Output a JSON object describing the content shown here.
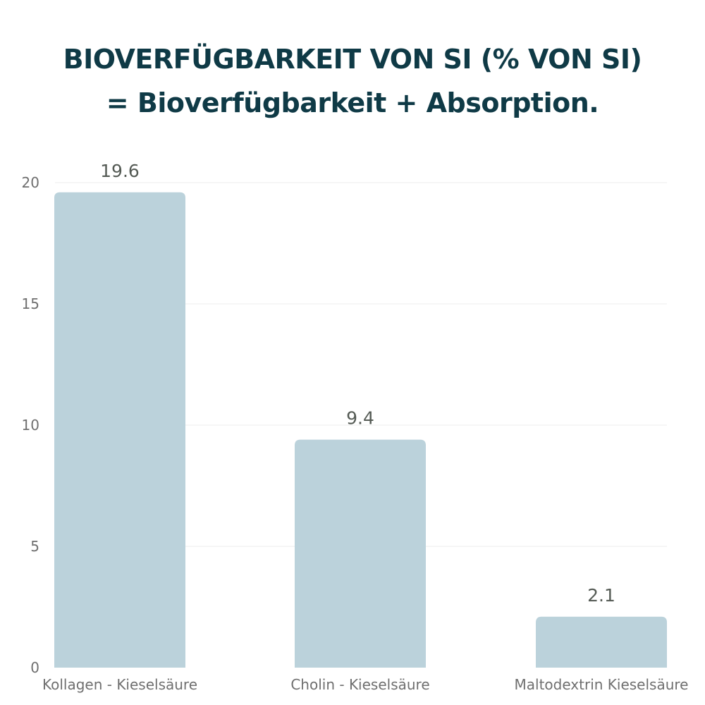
{
  "title_line1": "BIOVERFÜGBARKEIT VON SI (% VON SI)",
  "title_line2": "= Bioverfügbarkeit + Absorption.",
  "colors": {
    "title": "#0f3a46",
    "bar": "#bbd2db",
    "grid": "#ececec",
    "text": "#6f6f6f",
    "value_label": "#555b55"
  },
  "chart_data": {
    "type": "bar",
    "title": "BIOVERFÜGBARKEIT VON SI (% VON SI) = Bioverfügbarkeit + Absorption.",
    "categories": [
      "Kollagen - Kieselsäure",
      "Cholin - Kieselsäure",
      "Maltodextrin Kieselsäure"
    ],
    "values": [
      19.6,
      9.4,
      2.1
    ],
    "value_labels": [
      "19.6",
      "9.4",
      "2.1"
    ],
    "yticks": [
      0,
      5,
      10,
      15,
      20
    ],
    "ylim": [
      0,
      20
    ],
    "xlabel": "",
    "ylabel": "",
    "grid": true,
    "legend": "none"
  }
}
